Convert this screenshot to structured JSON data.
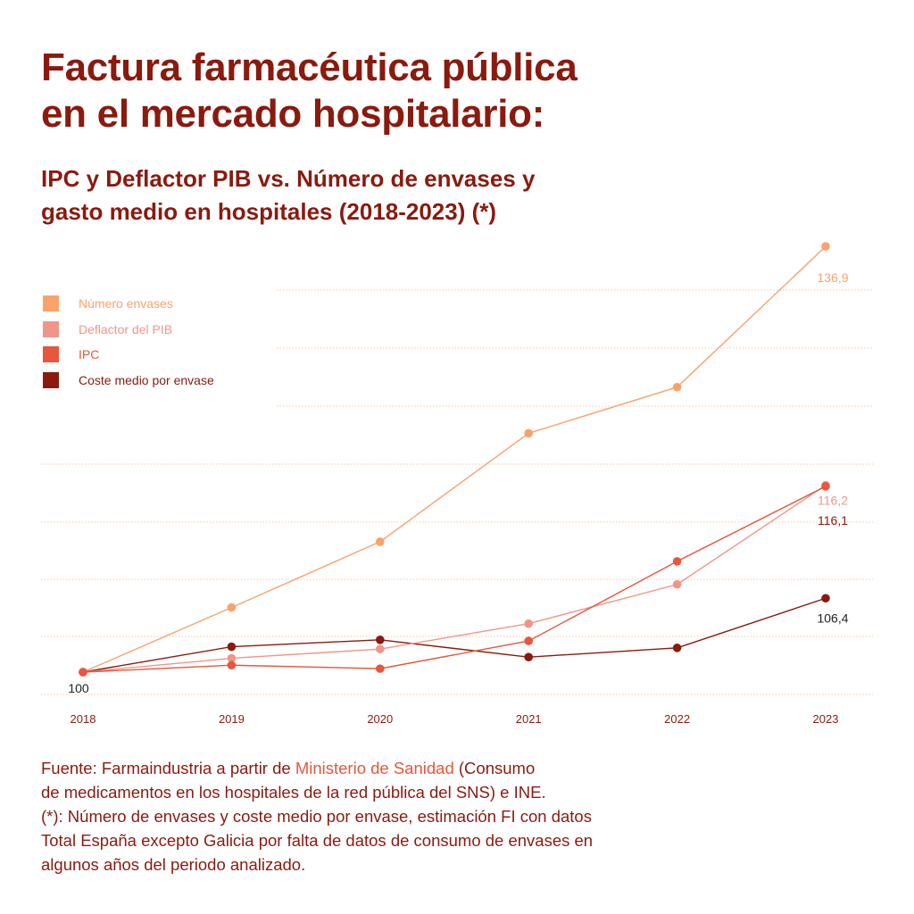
{
  "title_line1": "Factura farmacéutica pública",
  "title_line2": "en el mercado hospitalario:",
  "subtitle_line1": "IPC y Deflactor PIB vs. Número de envases y",
  "subtitle_line2": "gasto medio en hospitales (2018-2023) (*)",
  "colors": {
    "numero_envases": "#f9a26c",
    "deflactor": "#f0958a",
    "ipc": "#e8563d",
    "coste": "#8b1a0e",
    "title": "#8b1a0e",
    "grid": "#f5c9a8"
  },
  "source": {
    "prefix": "Fuente: Farmaindustria a partir de ",
    "link": "Ministerio de Sanidad",
    "suffix": "  (Consumo",
    "line2": "de medicamentos en los hospitales de la red pública del SNS) e INE.",
    "footnote_line1": "(*): Número de envases y coste medio por envase, estimación FI con datos",
    "footnote_line2": "Total España excepto Galicia por falta de datos de consumo de envases en",
    "footnote_line3": "algunos años del periodo analizado."
  },
  "chart_data": {
    "type": "line",
    "x": [
      "2018",
      "2019",
      "2020",
      "2021",
      "2022",
      "2023"
    ],
    "ylim": [
      98.2,
      139.4
    ],
    "grid": true,
    "legend_position": "top-left",
    "series": [
      {
        "name": "Número envases",
        "key": "numero_envases",
        "values": [
          100,
          105.6,
          111.3,
          120.7,
          124.7,
          136.9
        ],
        "end_label": "136,9"
      },
      {
        "name": "Deflactor del PIB",
        "key": "deflactor",
        "values": [
          100,
          101.2,
          102.0,
          104.2,
          107.6,
          116.2
        ],
        "end_label": "116,2"
      },
      {
        "name": "IPC",
        "key": "ipc",
        "values": [
          100,
          100.6,
          100.3,
          102.7,
          109.6,
          116.1
        ],
        "end_label": "116,1"
      },
      {
        "name": "Coste medio por envase",
        "key": "coste",
        "values": [
          100,
          102.2,
          102.8,
          101.3,
          102.1,
          106.4
        ],
        "end_label": "106,4"
      }
    ],
    "start_label": "100"
  }
}
